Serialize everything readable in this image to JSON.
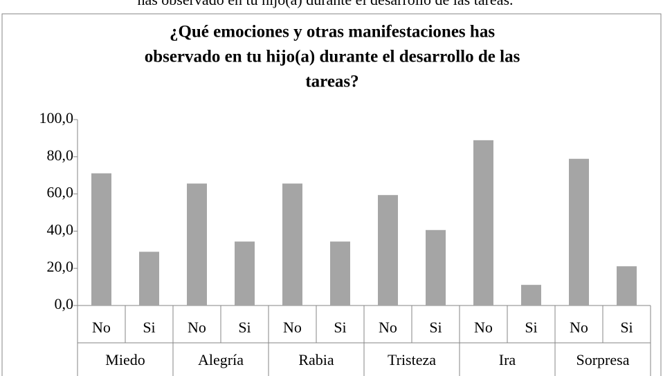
{
  "caption": "has observado en tu hijo(a) durante el desarrollo de las tareas.",
  "chart_data": {
    "type": "bar",
    "title": [
      "¿Qué emociones  y otras manifestaciones has",
      "observado en tu hijo(a)  durante el desarrollo de las",
      "tareas?"
    ],
    "groups": [
      "Miedo",
      "Alegría",
      "Rabia",
      "Tristeza",
      "Ira",
      "Sorpresa"
    ],
    "categories": [
      "No",
      "Si",
      "No",
      "Si",
      "No",
      "Si",
      "No",
      "Si",
      "No",
      "Si",
      "No",
      "Si"
    ],
    "values": [
      71.1,
      28.9,
      65.6,
      34.4,
      65.6,
      34.4,
      59.4,
      40.6,
      88.9,
      11.1,
      78.9,
      21.1
    ],
    "color": "#a5a5a5",
    "ylim": [
      0,
      100
    ],
    "yticks": [
      {
        "value": 0,
        "label": "0,0"
      },
      {
        "value": 20,
        "label": "20,0"
      },
      {
        "value": 40,
        "label": "40,0"
      },
      {
        "value": 60,
        "label": "60,0"
      },
      {
        "value": 80,
        "label": "80,0"
      },
      {
        "value": 100,
        "label": "100,0"
      }
    ],
    "grid": false
  }
}
